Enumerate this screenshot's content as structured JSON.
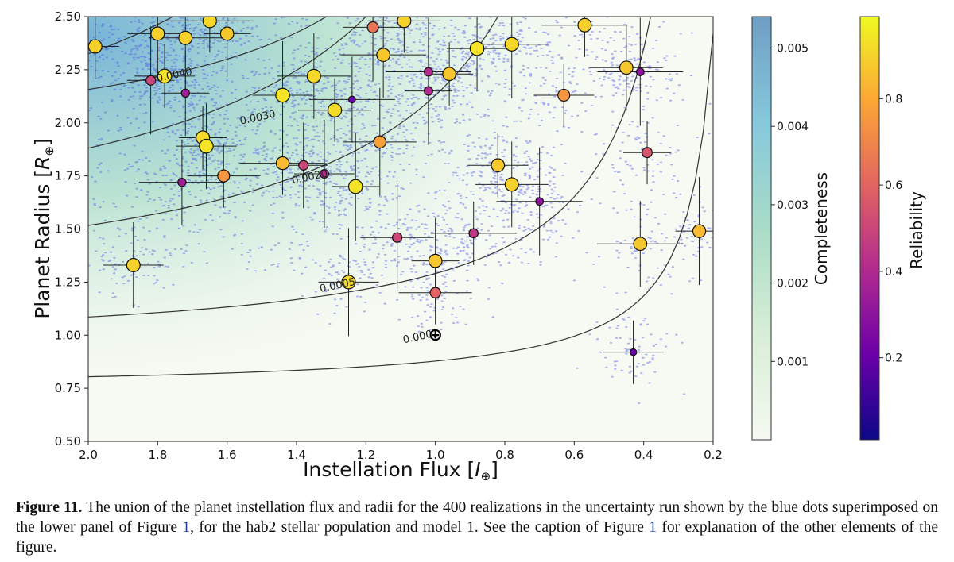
{
  "chart_data": {
    "type": "scatter",
    "xlabel_prefix": "Instellation Flux [",
    "xlabel_unit": "I",
    "xlabel_sub": "⊕",
    "xlabel_suffix": "]",
    "ylabel_prefix": "Planet Radius [",
    "ylabel_unit": "R",
    "ylabel_sub": "⊕",
    "ylabel_suffix": "]",
    "xlim": [
      2.0,
      0.2
    ],
    "ylim": [
      0.5,
      2.5
    ],
    "x_reversed": true,
    "x_ticks": [
      "2.0",
      "1.8",
      "1.6",
      "1.4",
      "1.2",
      "1.0",
      "0.8",
      "0.6",
      "0.4",
      "0.2"
    ],
    "y_ticks": [
      "0.50",
      "0.75",
      "1.00",
      "1.25",
      "1.50",
      "1.75",
      "2.00",
      "2.25",
      "2.50"
    ],
    "grid": false,
    "earth_marker": {
      "flux": 1.0,
      "radius": 1.0,
      "symbol": "⊕"
    },
    "contours": [
      {
        "label": "0.0001",
        "label_at": [
          1.04,
          0.98
        ]
      },
      {
        "label": "0.0005",
        "label_at": [
          1.28,
          1.22
        ]
      },
      {
        "label": "0.0020",
        "label_at": [
          1.36,
          1.73
        ]
      },
      {
        "label": "0.0030",
        "label_at": [
          1.51,
          2.01
        ]
      },
      {
        "label": "0.0040",
        "label_at": [
          1.75,
          2.21
        ]
      }
    ],
    "planets": [
      {
        "flux": 1.98,
        "radius": 2.36,
        "rel": 0.9
      },
      {
        "flux": 1.8,
        "radius": 2.42,
        "rel": 0.9
      },
      {
        "flux": 1.72,
        "radius": 2.4,
        "rel": 0.9
      },
      {
        "flux": 1.65,
        "radius": 2.48,
        "rel": 0.92
      },
      {
        "flux": 1.6,
        "radius": 2.42,
        "rel": 0.88
      },
      {
        "flux": 1.18,
        "radius": 2.45,
        "rel": 0.65
      },
      {
        "flux": 1.09,
        "radius": 2.48,
        "rel": 0.9
      },
      {
        "flux": 1.15,
        "radius": 2.32,
        "rel": 0.88
      },
      {
        "flux": 1.82,
        "radius": 2.2,
        "rel": 0.5
      },
      {
        "flux": 1.78,
        "radius": 2.22,
        "rel": 0.95
      },
      {
        "flux": 1.35,
        "radius": 2.22,
        "rel": 0.92
      },
      {
        "flux": 1.02,
        "radius": 2.24,
        "rel": 0.4
      },
      {
        "flux": 0.96,
        "radius": 2.23,
        "rel": 0.88
      },
      {
        "flux": 0.88,
        "radius": 2.35,
        "rel": 0.95
      },
      {
        "flux": 0.78,
        "radius": 2.37,
        "rel": 0.92
      },
      {
        "flux": 0.57,
        "radius": 2.46,
        "rel": 0.9
      },
      {
        "flux": 1.72,
        "radius": 2.14,
        "rel": 0.35
      },
      {
        "flux": 1.44,
        "radius": 2.13,
        "rel": 0.95
      },
      {
        "flux": 1.29,
        "radius": 2.06,
        "rel": 0.93
      },
      {
        "flux": 1.24,
        "radius": 2.11,
        "rel": 0.2
      },
      {
        "flux": 1.02,
        "radius": 2.15,
        "rel": 0.4
      },
      {
        "flux": 0.63,
        "radius": 2.13,
        "rel": 0.75
      },
      {
        "flux": 0.45,
        "radius": 2.26,
        "rel": 0.88
      },
      {
        "flux": 0.41,
        "radius": 2.24,
        "rel": 0.3
      },
      {
        "flux": 1.67,
        "radius": 1.93,
        "rel": 0.92
      },
      {
        "flux": 1.66,
        "radius": 1.89,
        "rel": 0.95
      },
      {
        "flux": 1.16,
        "radius": 1.91,
        "rel": 0.78
      },
      {
        "flux": 1.44,
        "radius": 1.81,
        "rel": 0.85
      },
      {
        "flux": 1.38,
        "radius": 1.8,
        "rel": 0.5
      },
      {
        "flux": 1.32,
        "radius": 1.76,
        "rel": 0.4
      },
      {
        "flux": 1.61,
        "radius": 1.75,
        "rel": 0.75
      },
      {
        "flux": 1.73,
        "radius": 1.72,
        "rel": 0.35
      },
      {
        "flux": 1.23,
        "radius": 1.7,
        "rel": 0.95
      },
      {
        "flux": 0.82,
        "radius": 1.8,
        "rel": 0.88
      },
      {
        "flux": 0.78,
        "radius": 1.71,
        "rel": 0.9
      },
      {
        "flux": 0.7,
        "radius": 1.63,
        "rel": 0.3
      },
      {
        "flux": 0.39,
        "radius": 1.86,
        "rel": 0.55
      },
      {
        "flux": 1.87,
        "radius": 1.33,
        "rel": 0.9
      },
      {
        "flux": 1.11,
        "radius": 1.46,
        "rel": 0.5
      },
      {
        "flux": 0.89,
        "radius": 1.48,
        "rel": 0.45
      },
      {
        "flux": 1.0,
        "radius": 1.35,
        "rel": 0.88
      },
      {
        "flux": 1.25,
        "radius": 1.25,
        "rel": 0.92
      },
      {
        "flux": 1.0,
        "radius": 1.2,
        "rel": 0.6
      },
      {
        "flux": 0.41,
        "radius": 1.43,
        "rel": 0.88
      },
      {
        "flux": 0.24,
        "radius": 1.49,
        "rel": 0.85
      },
      {
        "flux": 0.43,
        "radius": 0.92,
        "rel": 0.2
      }
    ]
  },
  "colorbars": {
    "completeness": {
      "label": "Completeness",
      "ticks": [
        "0.001",
        "0.002",
        "0.003",
        "0.004",
        "0.005"
      ],
      "range": [
        0.0,
        0.0054
      ],
      "colors": [
        "#f5f9f2",
        "#d8eed6",
        "#a9dcc8",
        "#86c8dc",
        "#6f9ec4"
      ]
    },
    "reliability": {
      "label": "Reliability",
      "ticks": [
        "0.2",
        "0.4",
        "0.6",
        "0.8"
      ],
      "range": [
        0.01,
        0.99
      ],
      "colors": [
        "#0d0887",
        "#6a00a8",
        "#b12a90",
        "#e16462",
        "#fca636",
        "#f0f921"
      ]
    }
  },
  "caption": {
    "label": "Figure 11.",
    "text_1": " The union of the planet instellation flux and radii for the 400 realizations in the uncertainty run shown by the blue dots superimposed on the lower panel of Figure ",
    "ref_1": "1",
    "text_2": ", for the hab2 stellar population and model 1. See the caption of Figure ",
    "ref_2": "1",
    "text_3": " for explanation of the other elements of the figure."
  }
}
